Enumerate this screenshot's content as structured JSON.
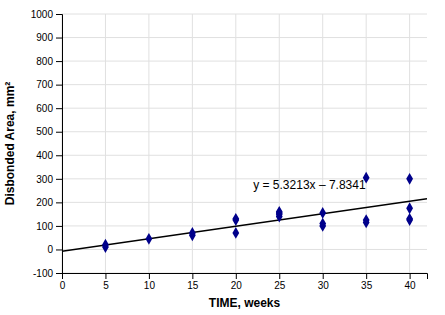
{
  "chart_data": {
    "type": "scatter",
    "x_label": "TIME, weeks",
    "y_label": "Disbonded Area, mm²",
    "series": [
      {
        "type": "scatter",
        "color": "#00008B",
        "marker": "diamond",
        "x": [
          5,
          5,
          10,
          15,
          15,
          20,
          20,
          20,
          25,
          25,
          25,
          25,
          30,
          30,
          30,
          35,
          35,
          35,
          40,
          40,
          40,
          40
        ],
        "values": [
          10,
          20,
          45,
          60,
          70,
          70,
          125,
          130,
          140,
          150,
          155,
          160,
          100,
          110,
          155,
          115,
          125,
          305,
          125,
          130,
          175,
          300
        ]
      },
      {
        "type": "line",
        "color": "#000000",
        "line_style": "solid",
        "x": [
          0,
          42
        ],
        "values": [
          -7.8341,
          215.6605
        ]
      }
    ],
    "annotations": [
      {
        "text": "y = 5.3213x – 7.8341",
        "x": 22,
        "y": 255
      }
    ],
    "xlim": [
      0,
      42
    ],
    "ylim": [
      -100,
      1000
    ],
    "xticks": [
      0,
      5,
      10,
      15,
      20,
      25,
      30,
      35,
      40
    ],
    "yticks": [
      -100,
      0,
      100,
      200,
      300,
      400,
      500,
      600,
      700,
      800,
      900,
      1000
    ],
    "grid": true
  }
}
